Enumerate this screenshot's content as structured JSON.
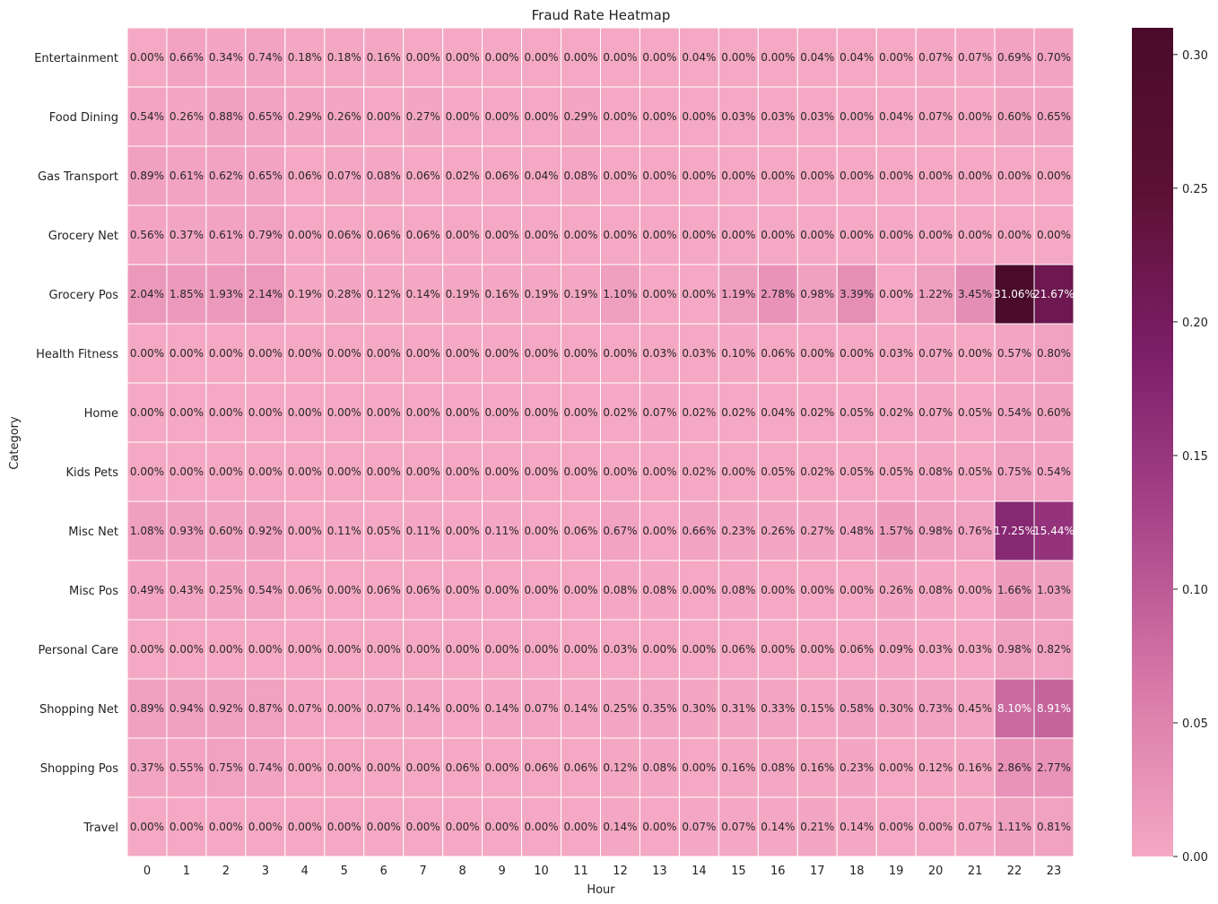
{
  "chart_data": {
    "type": "heatmap",
    "title": "Fraud Rate Heatmap",
    "xlabel": "Hour",
    "ylabel": "Category",
    "x_categories": [
      "0",
      "1",
      "2",
      "3",
      "4",
      "5",
      "6",
      "7",
      "8",
      "9",
      "10",
      "11",
      "12",
      "13",
      "14",
      "15",
      "16",
      "17",
      "18",
      "19",
      "20",
      "21",
      "22",
      "23"
    ],
    "y_categories": [
      "Entertainment",
      "Food Dining",
      "Gas Transport",
      "Grocery Net",
      "Grocery Pos",
      "Health Fitness",
      "Home",
      "Kids Pets",
      "Misc Net",
      "Misc Pos",
      "Personal Care",
      "Shopping Net",
      "Shopping Pos",
      "Travel"
    ],
    "cell_labels": [
      [
        "0.00%",
        "0.66%",
        "0.34%",
        "0.74%",
        "0.18%",
        "0.18%",
        "0.16%",
        "0.00%",
        "0.00%",
        "0.00%",
        "0.00%",
        "0.00%",
        "0.00%",
        "0.00%",
        "0.04%",
        "0.00%",
        "0.00%",
        "0.04%",
        "0.04%",
        "0.00%",
        "0.07%",
        "0.07%",
        "0.69%",
        "0.70%"
      ],
      [
        "0.54%",
        "0.26%",
        "0.88%",
        "0.65%",
        "0.29%",
        "0.26%",
        "0.00%",
        "0.27%",
        "0.00%",
        "0.00%",
        "0.00%",
        "0.29%",
        "0.00%",
        "0.00%",
        "0.00%",
        "0.03%",
        "0.03%",
        "0.03%",
        "0.00%",
        "0.04%",
        "0.07%",
        "0.00%",
        "0.60%",
        "0.65%"
      ],
      [
        "0.89%",
        "0.61%",
        "0.62%",
        "0.65%",
        "0.06%",
        "0.07%",
        "0.08%",
        "0.06%",
        "0.02%",
        "0.06%",
        "0.04%",
        "0.08%",
        "0.00%",
        "0.00%",
        "0.00%",
        "0.00%",
        "0.00%",
        "0.00%",
        "0.00%",
        "0.00%",
        "0.00%",
        "0.00%",
        "0.00%",
        "0.00%"
      ],
      [
        "0.56%",
        "0.37%",
        "0.61%",
        "0.79%",
        "0.00%",
        "0.06%",
        "0.06%",
        "0.06%",
        "0.00%",
        "0.00%",
        "0.00%",
        "0.00%",
        "0.00%",
        "0.00%",
        "0.00%",
        "0.00%",
        "0.00%",
        "0.00%",
        "0.00%",
        "0.00%",
        "0.00%",
        "0.00%",
        "0.00%",
        "0.00%"
      ],
      [
        "2.04%",
        "1.85%",
        "1.93%",
        "2.14%",
        "0.19%",
        "0.28%",
        "0.12%",
        "0.14%",
        "0.19%",
        "0.16%",
        "0.19%",
        "0.19%",
        "1.10%",
        "0.00%",
        "0.00%",
        "1.19%",
        "2.78%",
        "0.98%",
        "3.39%",
        "0.00%",
        "1.22%",
        "3.45%",
        "31.06%",
        "21.67%"
      ],
      [
        "0.00%",
        "0.00%",
        "0.00%",
        "0.00%",
        "0.00%",
        "0.00%",
        "0.00%",
        "0.00%",
        "0.00%",
        "0.00%",
        "0.00%",
        "0.00%",
        "0.00%",
        "0.03%",
        "0.03%",
        "0.10%",
        "0.06%",
        "0.00%",
        "0.00%",
        "0.03%",
        "0.07%",
        "0.00%",
        "0.57%",
        "0.80%"
      ],
      [
        "0.00%",
        "0.00%",
        "0.00%",
        "0.00%",
        "0.00%",
        "0.00%",
        "0.00%",
        "0.00%",
        "0.00%",
        "0.00%",
        "0.00%",
        "0.00%",
        "0.02%",
        "0.07%",
        "0.02%",
        "0.02%",
        "0.04%",
        "0.02%",
        "0.05%",
        "0.02%",
        "0.07%",
        "0.05%",
        "0.54%",
        "0.60%"
      ],
      [
        "0.00%",
        "0.00%",
        "0.00%",
        "0.00%",
        "0.00%",
        "0.00%",
        "0.00%",
        "0.00%",
        "0.00%",
        "0.00%",
        "0.00%",
        "0.00%",
        "0.00%",
        "0.00%",
        "0.02%",
        "0.00%",
        "0.05%",
        "0.02%",
        "0.05%",
        "0.05%",
        "0.08%",
        "0.05%",
        "0.75%",
        "0.54%"
      ],
      [
        "1.08%",
        "0.93%",
        "0.60%",
        "0.92%",
        "0.00%",
        "0.11%",
        "0.05%",
        "0.11%",
        "0.00%",
        "0.11%",
        "0.00%",
        "0.06%",
        "0.67%",
        "0.00%",
        "0.66%",
        "0.23%",
        "0.26%",
        "0.27%",
        "0.48%",
        "1.57%",
        "0.98%",
        "0.76%",
        "17.25%",
        "15.44%"
      ],
      [
        "0.49%",
        "0.43%",
        "0.25%",
        "0.54%",
        "0.06%",
        "0.00%",
        "0.06%",
        "0.06%",
        "0.00%",
        "0.00%",
        "0.00%",
        "0.00%",
        "0.08%",
        "0.08%",
        "0.00%",
        "0.08%",
        "0.00%",
        "0.00%",
        "0.00%",
        "0.26%",
        "0.08%",
        "0.00%",
        "1.66%",
        "1.03%"
      ],
      [
        "0.00%",
        "0.00%",
        "0.00%",
        "0.00%",
        "0.00%",
        "0.00%",
        "0.00%",
        "0.00%",
        "0.00%",
        "0.00%",
        "0.00%",
        "0.00%",
        "0.03%",
        "0.00%",
        "0.00%",
        "0.06%",
        "0.00%",
        "0.00%",
        "0.06%",
        "0.09%",
        "0.03%",
        "0.03%",
        "0.98%",
        "0.82%"
      ],
      [
        "0.89%",
        "0.94%",
        "0.92%",
        "0.87%",
        "0.07%",
        "0.00%",
        "0.07%",
        "0.14%",
        "0.00%",
        "0.14%",
        "0.07%",
        "0.14%",
        "0.25%",
        "0.35%",
        "0.30%",
        "0.31%",
        "0.33%",
        "0.15%",
        "0.58%",
        "0.30%",
        "0.73%",
        "0.45%",
        "8.10%",
        "8.91%"
      ],
      [
        "0.37%",
        "0.55%",
        "0.75%",
        "0.74%",
        "0.00%",
        "0.00%",
        "0.00%",
        "0.00%",
        "0.06%",
        "0.00%",
        "0.06%",
        "0.06%",
        "0.12%",
        "0.08%",
        "0.00%",
        "0.16%",
        "0.08%",
        "0.16%",
        "0.23%",
        "0.00%",
        "0.12%",
        "0.16%",
        "2.86%",
        "2.77%"
      ],
      [
        "0.00%",
        "0.00%",
        "0.00%",
        "0.00%",
        "0.00%",
        "0.00%",
        "0.00%",
        "0.00%",
        "0.00%",
        "0.00%",
        "0.00%",
        "0.00%",
        "0.14%",
        "0.00%",
        "0.07%",
        "0.07%",
        "0.14%",
        "0.21%",
        "0.14%",
        "0.00%",
        "0.00%",
        "0.07%",
        "1.11%",
        "0.81%"
      ]
    ],
    "colorbar": {
      "range": [
        0,
        0.31
      ],
      "ticks": [
        0.0,
        0.05,
        0.1,
        0.15,
        0.2,
        0.25,
        0.3
      ],
      "tick_labels": [
        "0.00",
        "0.05",
        "0.10",
        "0.15",
        "0.20",
        "0.25",
        "0.30"
      ],
      "colors": [
        "#f4a8c3",
        "#d97aa9",
        "#a9478a",
        "#7e1f6b",
        "#5c1134",
        "#4a0b2a"
      ]
    },
    "grid": true,
    "cell_border_color": "#ffffff"
  }
}
